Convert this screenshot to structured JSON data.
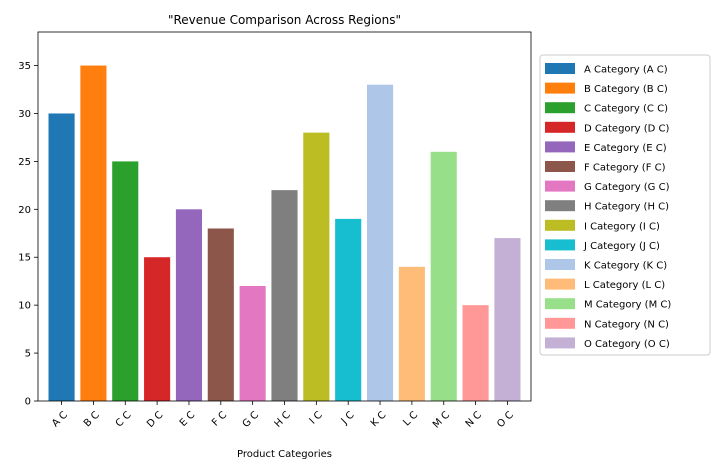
{
  "chart_data": {
    "type": "bar",
    "title": "\"Revenue Comparison Across Regions\"",
    "xlabel": "Product Categories",
    "ylabel": "",
    "ylim": [
      0,
      38.5
    ],
    "yticks": [
      0,
      5,
      10,
      15,
      20,
      25,
      30,
      35
    ],
    "grid": false,
    "legend_position": "right",
    "categories": [
      "A C",
      "B C",
      "C C",
      "D C",
      "E C",
      "F C",
      "G C",
      "H C",
      "I C",
      "J C",
      "K C",
      "L C",
      "M C",
      "N C",
      "O C"
    ],
    "values": [
      30,
      35,
      25,
      15,
      20,
      18,
      12,
      22,
      28,
      19,
      33,
      14,
      26,
      10,
      17
    ],
    "legend_labels": [
      "A Category (A C)",
      "B Category (B C)",
      "C Category (C C)",
      "D Category (D C)",
      "E Category (E C)",
      "F Category (F C)",
      "G Category (G C)",
      "H Category (H C)",
      "I Category (I C)",
      "J Category (J C)",
      "K Category (K C)",
      "L Category (L C)",
      "M Category (M C)",
      "N Category (N C)",
      "O Category (O C)"
    ],
    "colors": [
      "#1f77b4",
      "#ff7f0e",
      "#2ca02c",
      "#d62728",
      "#9467bd",
      "#8c564b",
      "#e377c2",
      "#7f7f7f",
      "#bcbd22",
      "#17becf",
      "#aec7e8",
      "#ffbb78",
      "#98df8a",
      "#ff9896",
      "#c5b0d5"
    ]
  }
}
